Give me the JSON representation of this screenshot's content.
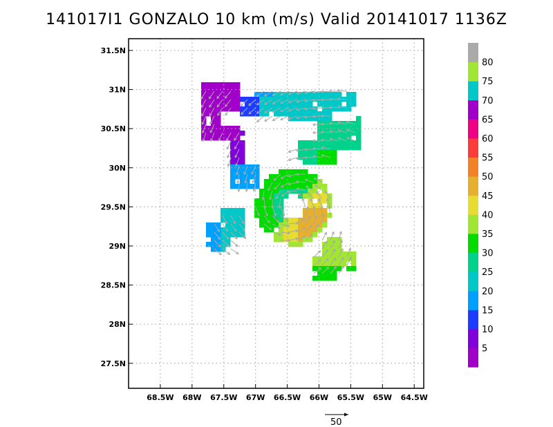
{
  "title": "141017I1 GONZALO 10 km (m/s) Valid 20141017 1136Z",
  "map": {
    "lon_range": [
      -69.0,
      -64.35
    ],
    "lat_range": [
      27.18,
      31.65
    ],
    "x_ticks": [
      {
        "value": -68.5,
        "label": "68.5W"
      },
      {
        "value": -68.0,
        "label": "68W"
      },
      {
        "value": -67.5,
        "label": "67.5W"
      },
      {
        "value": -67.0,
        "label": "67W"
      },
      {
        "value": -66.5,
        "label": "66.5W"
      },
      {
        "value": -66.0,
        "label": "66W"
      },
      {
        "value": -65.5,
        "label": "65.5W"
      },
      {
        "value": -65.0,
        "label": "65W"
      },
      {
        "value": -64.5,
        "label": "64.5W"
      }
    ],
    "y_ticks": [
      {
        "value": 27.5,
        "label": "27.5N"
      },
      {
        "value": 28.0,
        "label": "28N"
      },
      {
        "value": 28.5,
        "label": "28.5N"
      },
      {
        "value": 29.0,
        "label": "29N"
      },
      {
        "value": 29.5,
        "label": "29.5N"
      },
      {
        "value": 30.0,
        "label": "30N"
      },
      {
        "value": 30.5,
        "label": "30.5N"
      },
      {
        "value": 31.0,
        "label": "31N"
      },
      {
        "value": 31.5,
        "label": "31.5N"
      }
    ],
    "grid": true,
    "grid_style": "dotted",
    "center": {
      "lon": -66.4,
      "lat": 29.5
    }
  },
  "colorbar": {
    "colors": [
      "#a000c8",
      "#8200dc",
      "#1e3cff",
      "#00a0ff",
      "#00c8c8",
      "#00d28c",
      "#00dc00",
      "#a0e632",
      "#e6dc32",
      "#e6af2d",
      "#f08228",
      "#fa3c3c",
      "#f00082",
      "#a000c8",
      "#00c8c8",
      "#a0e632",
      "#aaaaaa"
    ],
    "labels": [
      "5",
      "10",
      "15",
      "20",
      "25",
      "30",
      "35",
      "40",
      "45",
      "50",
      "55",
      "60",
      "65",
      "70",
      "75",
      "80"
    ]
  },
  "reference_vector": {
    "label": "50"
  },
  "colors": {
    "arrow": "#a9a9a9",
    "grid": "#aaaaaa"
  }
}
